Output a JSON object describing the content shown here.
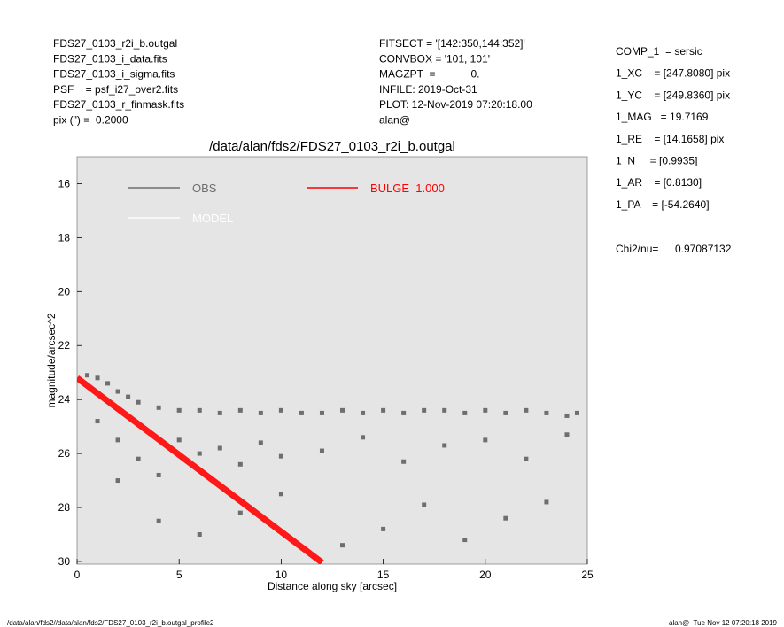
{
  "header": {
    "left": [
      "FDS27_0103_r2i_b.outgal",
      "FDS27_0103_i_data.fits",
      "FDS27_0103_i_sigma.fits",
      "PSF    = psf_i27_over2.fits",
      "FDS27_0103_r_finmask.fits",
      "pix (\") =  0.2000"
    ],
    "middle": [
      "FITSECT = '[142:350,144:352]'",
      "CONVBOX = '101, 101'",
      "MAGZPT  =            0.",
      "INFILE: 2019-Oct-31",
      "PLOT: 12-Nov-2019 07:20:18.00",
      "alan@"
    ],
    "right": [
      "COMP_1  = sersic",
      "1_XC    = [247.8080] pix",
      "1_YC    = [249.8360] pix",
      "1_MAG   = 19.7169",
      "1_RE    = [14.1658] pix",
      "1_N     = [0.9935]",
      "1_AR    = [0.8130]",
      "1_PA    = [-54.2640]"
    ],
    "chi2_label": "Chi2/nu=",
    "chi2_value": "0.97087132"
  },
  "chart_data": {
    "type": "scatter",
    "title": "/data/alan/fds2/FDS27_0103_r2i_b.outgal",
    "x_label": "Distance along sky [arcsec]",
    "y_label": "magnitude/arcsec^2",
    "xlim": [
      0,
      25
    ],
    "ylim": [
      15,
      30.1
    ],
    "y_inverted": true,
    "xticks": [
      0,
      5,
      10,
      15,
      20,
      25
    ],
    "yticks": [
      16,
      18,
      20,
      22,
      24,
      26,
      28,
      30
    ],
    "background": "#e5e5e5",
    "series": [
      {
        "name": "OBS",
        "color": "#6e6e6e",
        "mode": "markers",
        "x": [
          0.5,
          1,
          1.5,
          2,
          2.5,
          3,
          4,
          5,
          6,
          7,
          8,
          9,
          10,
          11,
          12,
          13,
          14,
          15,
          16,
          17,
          18,
          19,
          20,
          21,
          22,
          23,
          24,
          24.5,
          1,
          2,
          3,
          4,
          5,
          6,
          7,
          8,
          9,
          10,
          12,
          14,
          16,
          18,
          20,
          22,
          24,
          2,
          4,
          6,
          8,
          10,
          13,
          15,
          17,
          19,
          21,
          23
        ],
        "values": [
          23.1,
          23.2,
          23.4,
          23.7,
          23.9,
          24.1,
          24.3,
          24.4,
          24.4,
          24.5,
          24.4,
          24.5,
          24.4,
          24.5,
          24.5,
          24.4,
          24.5,
          24.4,
          24.5,
          24.4,
          24.4,
          24.5,
          24.4,
          24.5,
          24.4,
          24.5,
          24.6,
          24.5,
          24.8,
          25.5,
          26.2,
          26.8,
          25.5,
          26,
          25.8,
          26.4,
          25.6,
          26.1,
          25.9,
          25.4,
          26.3,
          25.7,
          25.5,
          26.2,
          25.3,
          27,
          28.5,
          29,
          28.2,
          27.5,
          29.4,
          28.8,
          27.9,
          29.2,
          28.4,
          27.8
        ]
      },
      {
        "name": "MODEL",
        "color": "#ffffff",
        "mode": "lines",
        "x": [
          0,
          2,
          4,
          6,
          8,
          10,
          12
        ],
        "values": [
          23.2,
          24.34,
          25.48,
          26.62,
          27.76,
          28.9,
          30.04
        ]
      },
      {
        "name": "BULGE  1.000",
        "color": "#ff0000",
        "mode": "lines",
        "x": [
          0,
          2,
          4,
          6,
          8,
          10,
          12
        ],
        "values": [
          23.2,
          24.34,
          25.48,
          26.62,
          27.76,
          28.9,
          30.04
        ]
      }
    ]
  },
  "footer": {
    "left": "/data/alan/fds2//data/alan/fds2/FDS27_0103_r2i_b.outgal_profile2",
    "right": "alan@  Tue Nov 12 07:20:18 2019"
  }
}
